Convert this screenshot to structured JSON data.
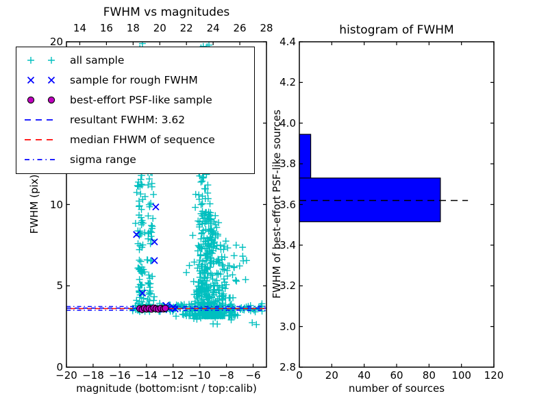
{
  "figure": {
    "background": "#ffffff"
  },
  "colors": {
    "all_sample": "#00bfbf",
    "rough_sample": "#0000ff",
    "psf_sample": "#bf00bf",
    "psf_edge": "#000000",
    "resultant_line": "#0000ff",
    "median_line": "#ff0000",
    "sigma_line": "#0000ff",
    "hist_bar": "#0000ff",
    "hist_edge": "#000000",
    "marker_line": "#000000"
  },
  "left_plot": {
    "title": "FWHM vs magnitudes",
    "xlabel": "magnitude (bottom:isnt / top:calib)",
    "ylabel": "FWHM (pix)",
    "xlim": [
      -20,
      -5
    ],
    "ylim": [
      0,
      20
    ],
    "top_xlim": [
      13,
      28
    ],
    "xticks": [
      -20,
      -18,
      -16,
      -14,
      -12,
      -10,
      -8,
      -6
    ],
    "top_xticks": [
      14,
      16,
      18,
      20,
      22,
      24,
      26,
      28
    ],
    "yticks": [
      0,
      5,
      10,
      15,
      20
    ]
  },
  "right_plot": {
    "title": "histogram of FWHM",
    "xlabel": "number of sources",
    "ylabel": "FWHM of best-effort PSF-like sources",
    "xlim": [
      0,
      120
    ],
    "ylim": [
      2.8,
      4.4
    ],
    "xticks": [
      0,
      20,
      40,
      60,
      80,
      100,
      120
    ],
    "yticks": [
      2.8,
      3.0,
      3.2,
      3.4,
      3.6,
      3.8,
      4.0,
      4.2,
      4.4
    ]
  },
  "legend": {
    "items": [
      {
        "label": "all sample",
        "sample": "scatter",
        "marker": "plus",
        "color": "#00bfbf"
      },
      {
        "label": "sample for rough FWHM",
        "sample": "scatter",
        "marker": "x",
        "color": "#0000ff"
      },
      {
        "label": "best-effort PSF-like sample",
        "sample": "scatter",
        "marker": "circle",
        "color": "#bf00bf"
      },
      {
        "label": "resultant FWHM: 3.62",
        "sample": "line",
        "dash": "9 7",
        "color": "#0000ff"
      },
      {
        "label": "median FHWM of sequence",
        "sample": "line",
        "dash": "9 7",
        "color": "#ff0000"
      },
      {
        "label": "sigma range",
        "sample": "line",
        "dash": "7 5 1.5 5",
        "color": "#0000ff"
      }
    ]
  },
  "chart_data": [
    {
      "type": "scatter",
      "title": "FWHM vs magnitudes",
      "xlabel": "magnitude (bottom:isnt / top:calib)",
      "ylabel": "FWHM (pix)",
      "xlim": [
        -20,
        -5
      ],
      "ylim": [
        0,
        20
      ],
      "top_axis_xlim": [
        13,
        28
      ],
      "grid": false,
      "legend_position": "upper-left",
      "series": [
        {
          "name": "all sample",
          "marker": "+",
          "color": "#00bfbf",
          "clusters": [
            {
              "kind": "vplume",
              "cx": -14.45,
              "sx": 0.16,
              "ymin": 3.5,
              "ymax": 20,
              "ypow": 1.5,
              "n": 115
            },
            {
              "kind": "vplume",
              "cx": -13.72,
              "sx": 0.13,
              "ymin": 3.6,
              "ymax": 15.5,
              "ypow": 1.3,
              "n": 55
            },
            {
              "kind": "vplume",
              "cx": -9.8,
              "sx": 0.3,
              "ymin": 4.5,
              "ymax": 20,
              "ypow": 1.15,
              "n": 125
            },
            {
              "kind": "vplume",
              "cx": -9.2,
              "sx": 0.85,
              "ymin": 3.15,
              "ymax": 9.5,
              "ypow": 2.8,
              "n": 430,
              "taper": true
            },
            {
              "kind": "hband",
              "xmin": -15.1,
              "xmax": -5.3,
              "y": 3.62,
              "sy": 0.13,
              "n": 150
            },
            {
              "kind": "box",
              "xmin": -12.5,
              "xmax": -5.6,
              "ymin": 2.3,
              "ymax": 3.25,
              "n": 10
            },
            {
              "kind": "vplume",
              "cx": -8.0,
              "sx": 0.9,
              "ymin": 4.5,
              "ymax": 8,
              "ypow": 1.4,
              "n": 30
            }
          ]
        },
        {
          "name": "sample for rough FWHM",
          "marker": "x",
          "color": "#0000ff",
          "points": [
            [
              -13.3,
              9.85
            ],
            [
              -14.75,
              8.15
            ],
            [
              -13.4,
              7.7
            ],
            [
              -13.4,
              6.55
            ],
            [
              -14.3,
              4.55
            ],
            [
              -12.55,
              3.8
            ],
            [
              -12.3,
              3.62
            ],
            [
              -12.0,
              3.68
            ],
            [
              -11.85,
              3.58
            ],
            [
              -12.7,
              3.55
            ],
            [
              -13.1,
              3.65
            ],
            [
              -12.45,
              3.72
            ]
          ]
        },
        {
          "name": "best-effort PSF-like sample",
          "marker": "o",
          "color": "#bf00bf",
          "points": [
            [
              -14.5,
              3.6
            ],
            [
              -14.32,
              3.55
            ],
            [
              -14.15,
              3.63
            ],
            [
              -13.98,
              3.58
            ],
            [
              -13.8,
              3.62
            ],
            [
              -13.62,
              3.56
            ],
            [
              -13.45,
              3.64
            ],
            [
              -13.28,
              3.59
            ],
            [
              -13.1,
              3.56
            ],
            [
              -12.92,
              3.62
            ],
            [
              -12.72,
              3.58
            ],
            [
              -12.58,
              3.62
            ]
          ]
        }
      ],
      "lines": [
        {
          "name": "resultant FWHM",
          "value": 3.62,
          "draw_y": 3.63,
          "style": "dashed",
          "color": "#0000ff"
        },
        {
          "name": "median FHWM of sequence",
          "draw_y": 3.6,
          "style": "dashed",
          "color": "#ff0000"
        },
        {
          "name": "sigma range",
          "draw_y_low": 3.5,
          "draw_y_high": 3.73,
          "style": "dashdot",
          "color": "#0000ff"
        }
      ]
    },
    {
      "type": "bar",
      "orientation": "horizontal",
      "title": "histogram of FWHM",
      "xlabel": "number of sources",
      "ylabel": "FWHM of best-effort PSF-like sources",
      "xlim": [
        0,
        120
      ],
      "ylim": [
        2.8,
        4.4
      ],
      "grid": false,
      "bins": [
        {
          "y_range": [
            3.515,
            3.73
          ],
          "count": 87
        },
        {
          "y_range": [
            3.73,
            3.945
          ],
          "count": 7
        }
      ],
      "marker_line": {
        "value": 3.62,
        "x_range": [
          0,
          104
        ],
        "style": "dashed",
        "color": "#000000"
      }
    }
  ]
}
